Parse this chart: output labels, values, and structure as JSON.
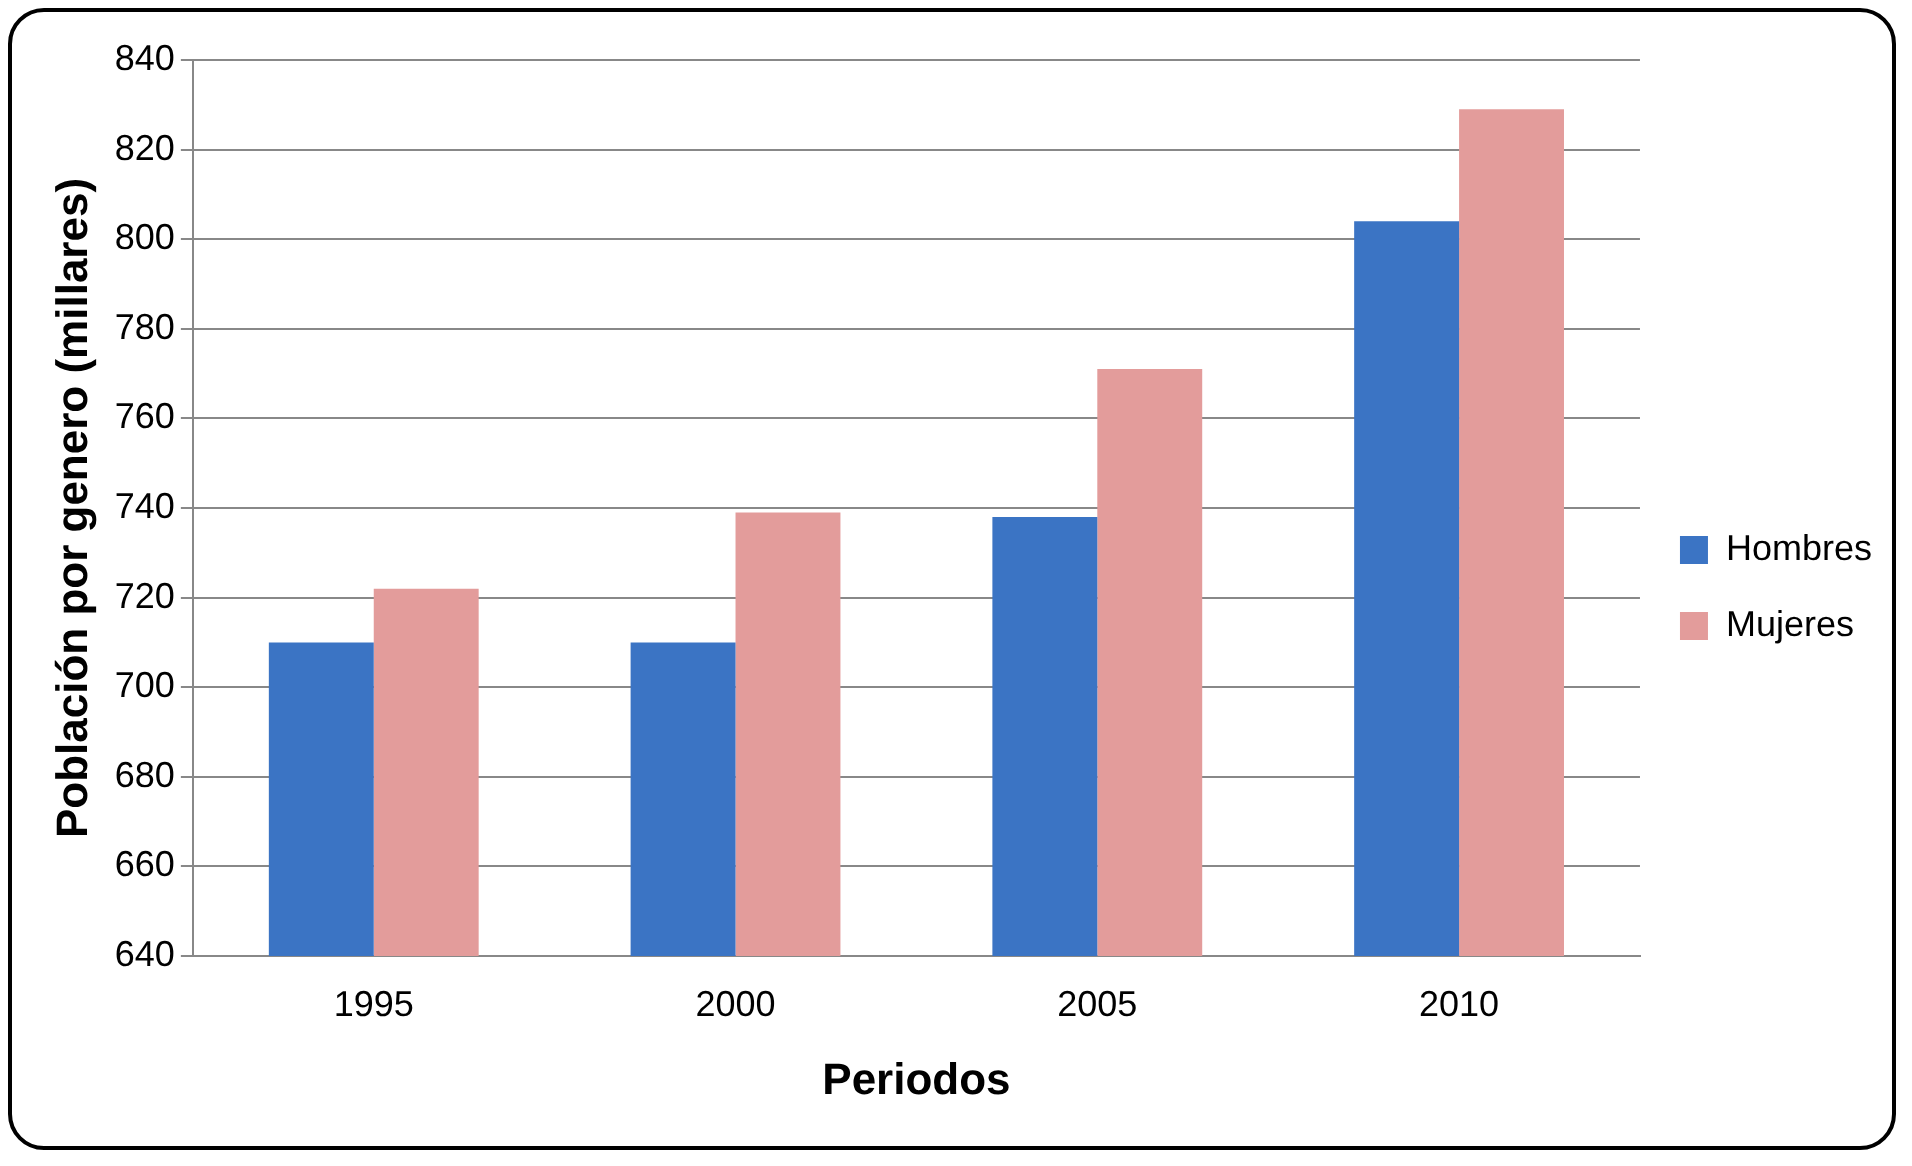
{
  "chart_data": {
    "type": "bar",
    "xlabel": "Periodos",
    "ylabel": "Población por genero (millares)",
    "categories": [
      "1995",
      "2000",
      "2005",
      "2010"
    ],
    "series": [
      {
        "name": "Hombres",
        "color": "#3b74c4",
        "values": [
          710,
          710,
          738,
          804
        ]
      },
      {
        "name": "Mujeres",
        "color": "#e39c9b",
        "values": [
          722,
          739,
          771,
          829
        ]
      }
    ],
    "ylim": [
      640,
      840
    ],
    "yticks": [
      640,
      660,
      680,
      700,
      720,
      740,
      760,
      780,
      800,
      820,
      840
    ],
    "grid": "y",
    "legend": "right"
  }
}
